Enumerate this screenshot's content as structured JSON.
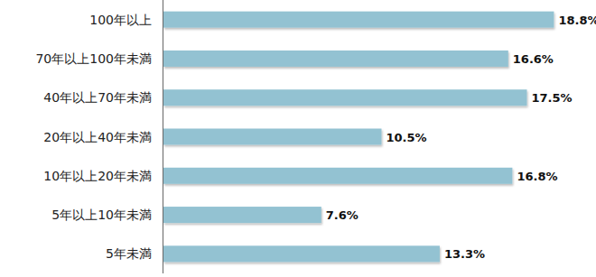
{
  "chart_data": {
    "type": "bar",
    "orientation": "horizontal",
    "categories": [
      "100年以上",
      "70年以上100年未満",
      "40年以上70年未満",
      "20年以上40年未満",
      "10年以上20年未満",
      "5年以上10年未満",
      "5年未満"
    ],
    "values": [
      18.8,
      16.6,
      17.5,
      10.5,
      16.8,
      7.6,
      13.3
    ],
    "value_labels": [
      "18.8%",
      "16.6%",
      "17.5%",
      "10.5%",
      "16.8%",
      "7.6%",
      "13.3%"
    ],
    "color": "#93c2d2",
    "xlim": [
      0,
      20
    ],
    "grid": false,
    "data_labels": true,
    "tick_labels": "y"
  }
}
